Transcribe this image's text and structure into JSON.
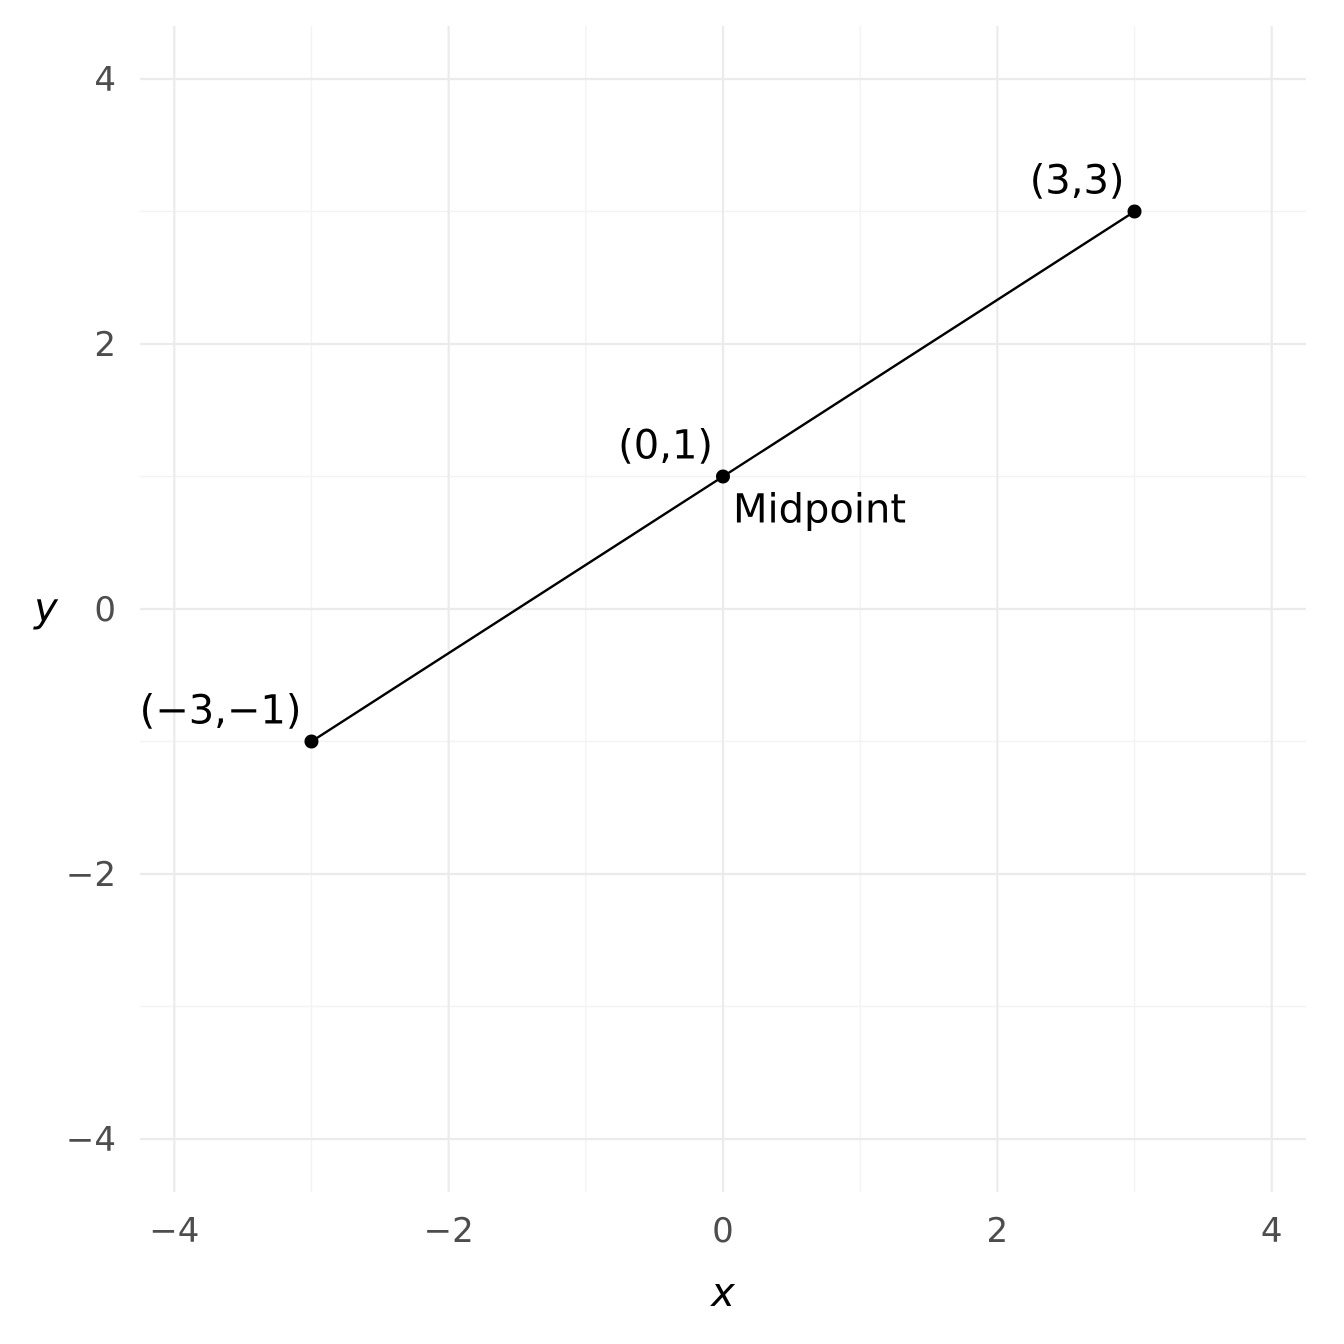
{
  "chart_data": {
    "type": "scatter",
    "title": "",
    "xlabel": "x",
    "ylabel": "y",
    "xlim": [
      -4.25,
      4.25
    ],
    "ylim": [
      -4.4,
      4.4
    ],
    "x_ticks": [
      -4,
      -2,
      0,
      2,
      4
    ],
    "y_ticks": [
      -4,
      -2,
      0,
      2,
      4
    ],
    "x_tick_labels": [
      "−4",
      "−2",
      "0",
      "2",
      "4"
    ],
    "y_tick_labels": [
      "−4",
      "−2",
      "0",
      "2",
      "4"
    ],
    "x_minor_ticks": [
      -3,
      -1,
      1,
      3
    ],
    "y_minor_ticks": [
      -3,
      -1,
      1,
      3
    ],
    "grid": true,
    "legend": "none",
    "segment": {
      "from": [
        -3,
        -1
      ],
      "to": [
        3,
        3
      ],
      "color": "#000000"
    },
    "points": [
      {
        "x": -3,
        "y": -1,
        "label": "(−3,−1)"
      },
      {
        "x": 0,
        "y": 1,
        "label": "(0,1)"
      },
      {
        "x": 3,
        "y": 3,
        "label": "(3,3)"
      }
    ],
    "annotations": [
      {
        "text": "Midpoint",
        "x": 0,
        "y": 1
      }
    ]
  }
}
